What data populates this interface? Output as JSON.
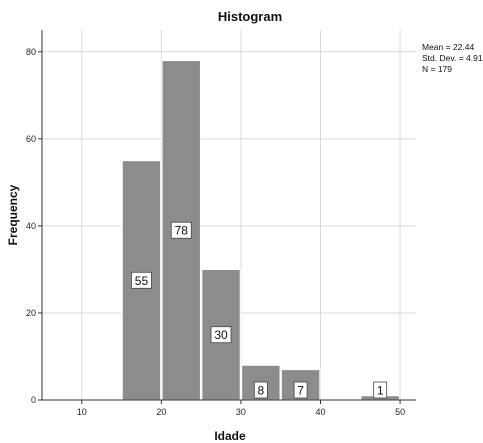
{
  "chart_data": {
    "type": "bar",
    "title": "Histogram",
    "xlabel": "Idade",
    "ylabel": "Frequency",
    "xlim": [
      5,
      52
    ],
    "ylim": [
      0,
      85
    ],
    "x_ticks": [
      "10",
      "20",
      "30",
      "40",
      "50"
    ],
    "y_ticks": [
      "0",
      "20",
      "40",
      "60",
      "80"
    ],
    "bins": [
      {
        "start": 15,
        "end": 20,
        "value": 55,
        "label": "55"
      },
      {
        "start": 20,
        "end": 25,
        "value": 78,
        "label": "78"
      },
      {
        "start": 25,
        "end": 30,
        "value": 30,
        "label": "30"
      },
      {
        "start": 30,
        "end": 35,
        "value": 8,
        "label": "8"
      },
      {
        "start": 35,
        "end": 40,
        "value": 7,
        "label": "7"
      },
      {
        "start": 40,
        "end": 45,
        "value": 0,
        "label": ""
      },
      {
        "start": 45,
        "end": 50,
        "value": 1,
        "label": "1"
      }
    ],
    "statistics": [
      "Mean = 22.44",
      "Std. Dev. = 4.915",
      "N = 179"
    ],
    "bar_color": "#8c8c8c",
    "grid": true
  }
}
